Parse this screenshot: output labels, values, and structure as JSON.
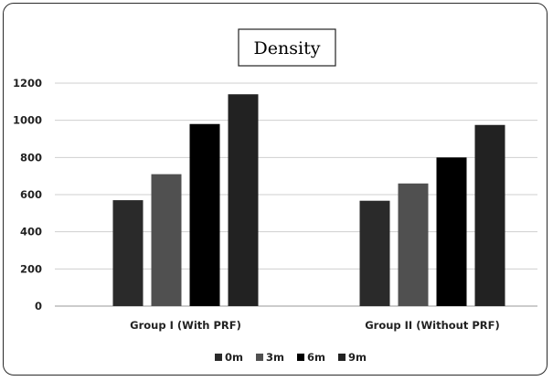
{
  "chart_data": {
    "type": "bar",
    "title": "Density",
    "categories": [
      "Group I (With PRF)",
      "Group II (Without PRF)"
    ],
    "series": [
      {
        "name": "0m",
        "values": [
          570,
          567
        ],
        "color": "#2a2a2a"
      },
      {
        "name": "3m",
        "values": [
          710,
          660
        ],
        "color": "#505050"
      },
      {
        "name": "6m",
        "values": [
          980,
          800
        ],
        "color": "#000000"
      },
      {
        "name": "9m",
        "values": [
          1140,
          975
        ],
        "color": "#222222"
      }
    ],
    "ylim": [
      0,
      1200
    ],
    "yticks": [
      0,
      200,
      400,
      600,
      800,
      1000,
      1200
    ],
    "grid": true,
    "legend": "bottom",
    "xlabel": "",
    "ylabel": ""
  }
}
